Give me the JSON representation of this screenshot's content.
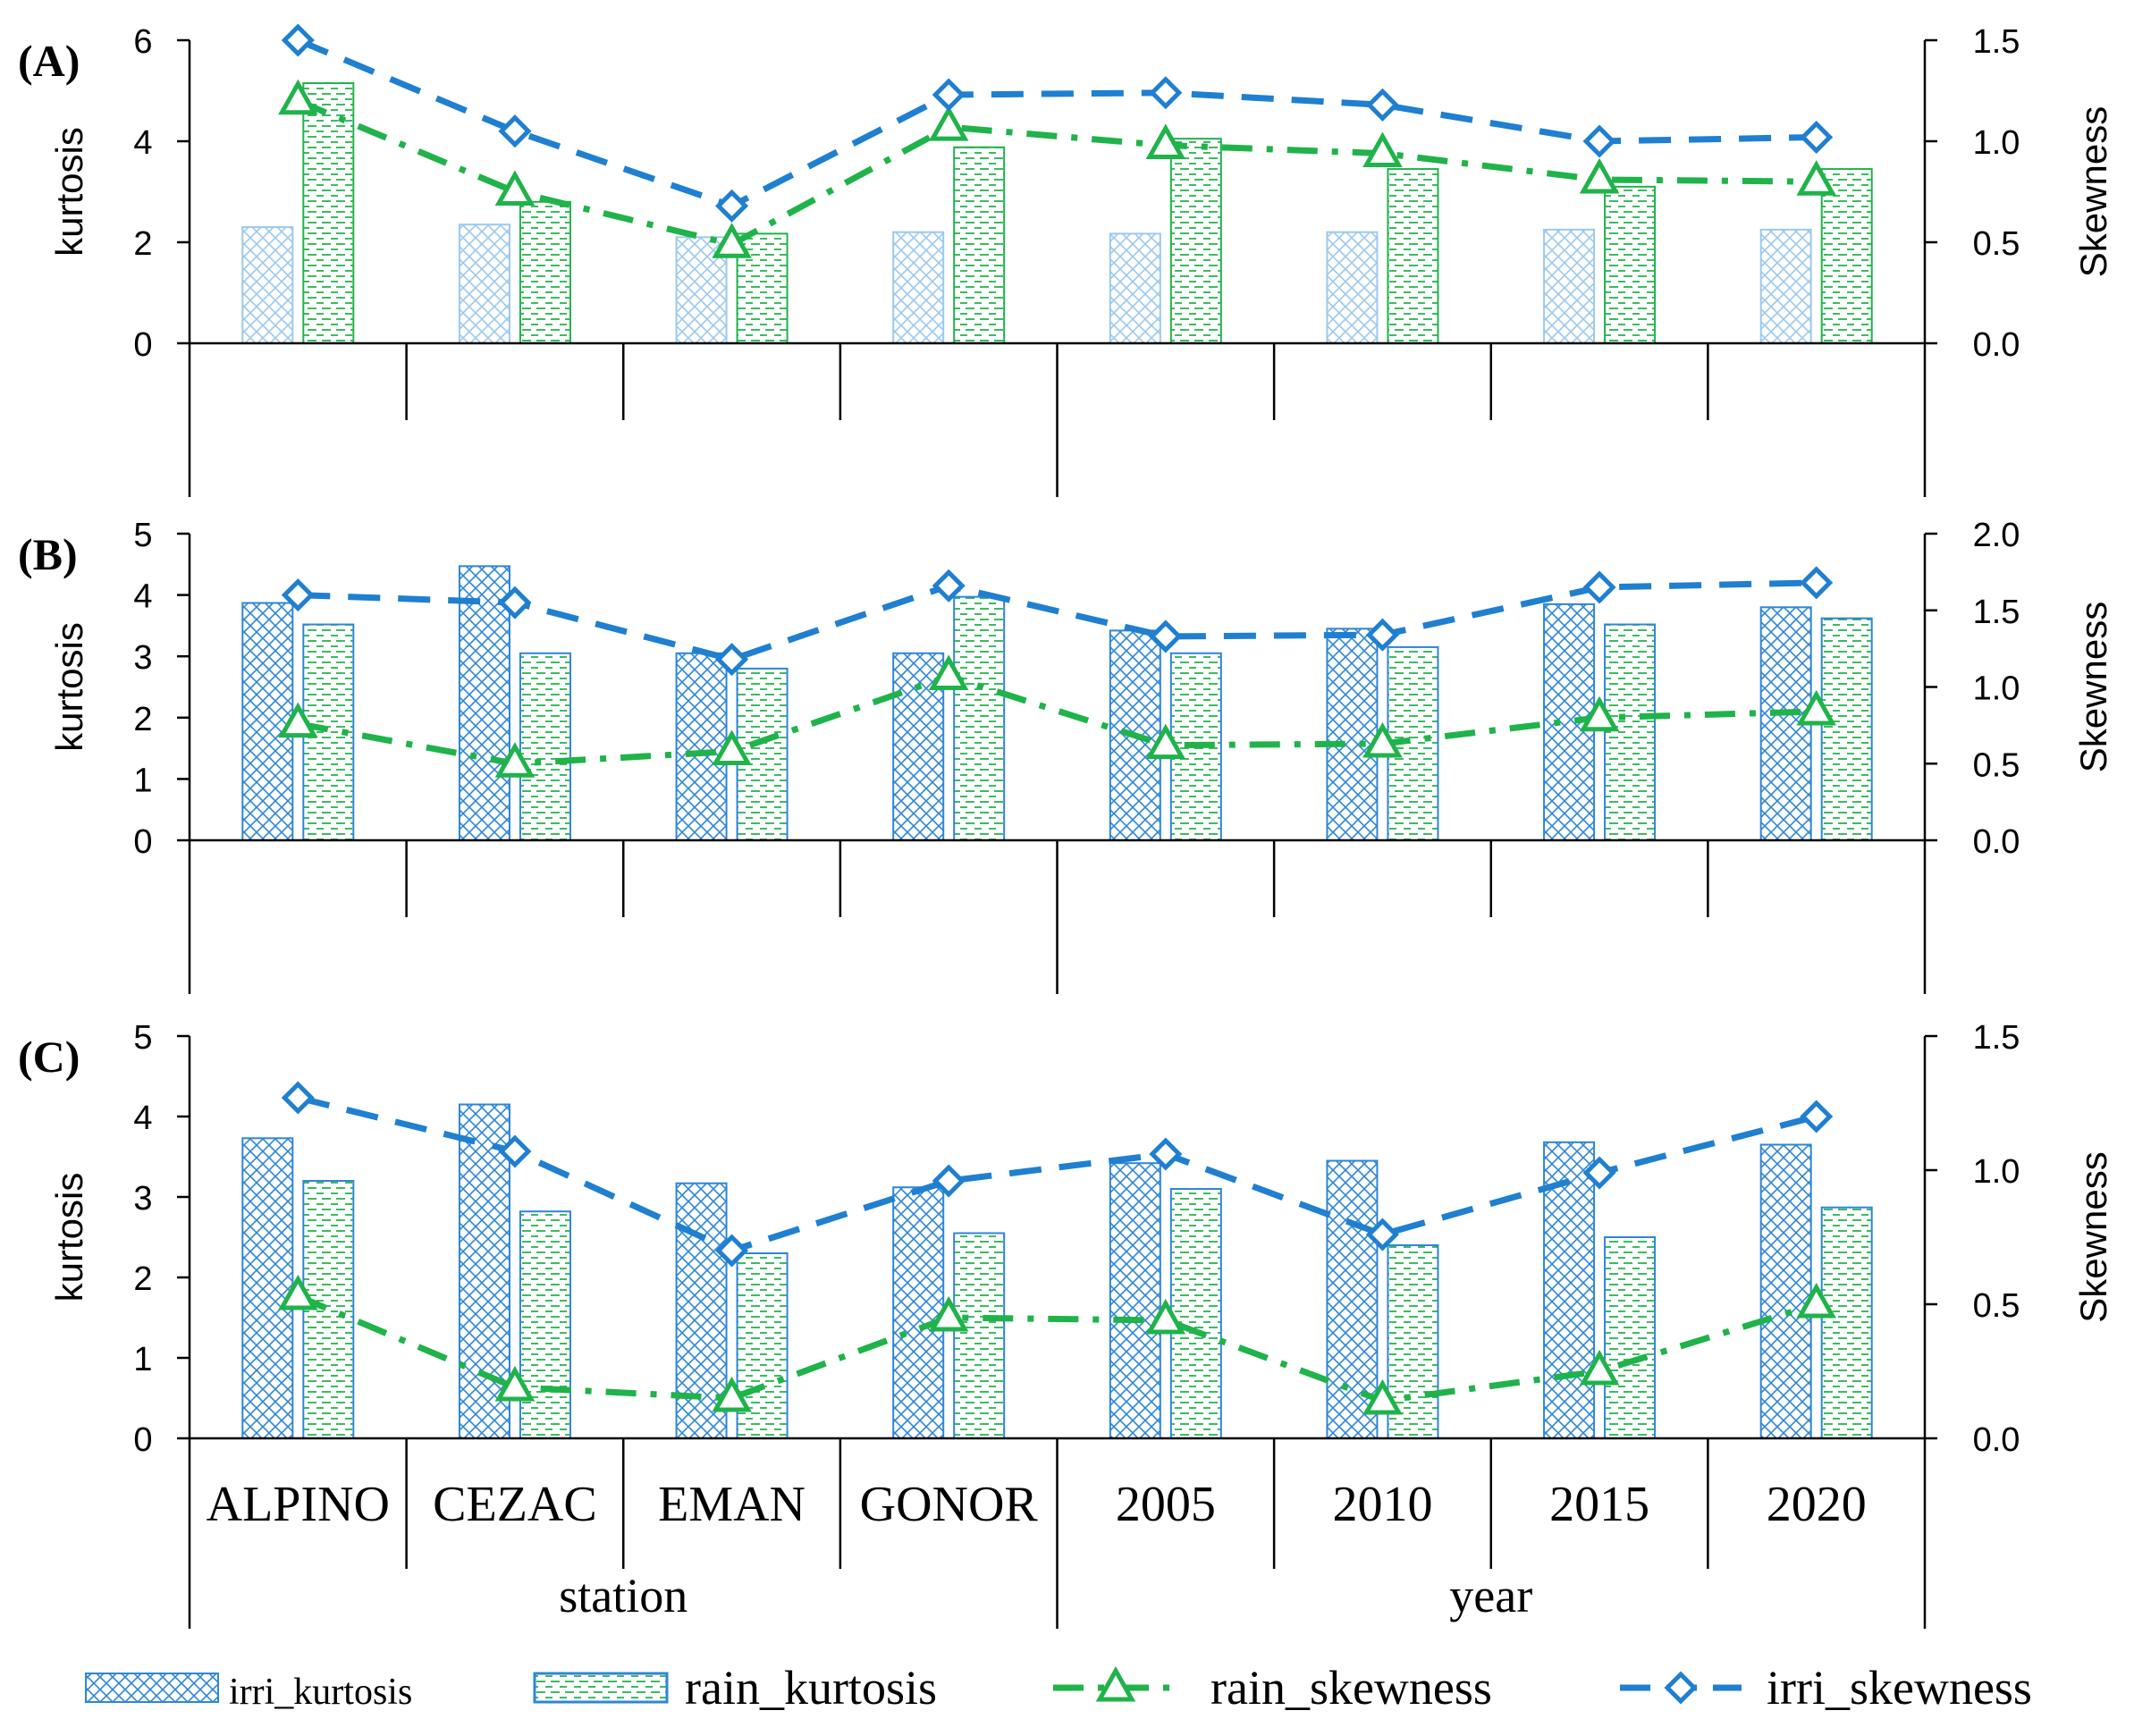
{
  "figure": {
    "categories": [
      "ALPINO",
      "CEZAC",
      "EMAN",
      "GONOR",
      "2005",
      "2010",
      "2015",
      "2020"
    ],
    "groups": [
      {
        "label": "station",
        "span": [
          0,
          3
        ]
      },
      {
        "label": "year",
        "span": [
          4,
          7
        ]
      }
    ],
    "legend": [
      {
        "key": "irri_kurtosis",
        "label": "irri_kurtosis"
      },
      {
        "key": "rain_kurtosis",
        "label": "rain_kurtosis"
      },
      {
        "key": "rain_skewness",
        "label": "rain_skewness"
      },
      {
        "key": "irri_skewness",
        "label": "irri_skewness"
      }
    ],
    "colors": {
      "irri_kurtosis": "#2e86d6",
      "irri_kurtosis_light": "#9cc9ee",
      "rain_kurtosis": "#1fb34a",
      "rain_skewness": "#1fb34a",
      "irri_skewness": "#1f7fd0",
      "axis": "#000000"
    }
  },
  "chart_data": [
    {
      "type": "bar",
      "panel": "(A)",
      "ylabel": "kurtosis",
      "y2label": "Skewness",
      "ylim": [
        0,
        6
      ],
      "yticks": [
        "0",
        "2",
        "4",
        "6"
      ],
      "y2lim": [
        0,
        1.5
      ],
      "y2ticks": [
        "0.0",
        "0.5",
        "1.0",
        "1.5"
      ],
      "light_irri": true,
      "series": [
        {
          "name": "irri_kurtosis",
          "type": "bar",
          "axis": "left",
          "values": [
            2.3,
            2.35,
            2.1,
            2.2,
            2.17,
            2.2,
            2.25,
            2.25
          ]
        },
        {
          "name": "rain_kurtosis",
          "type": "bar",
          "axis": "left",
          "values": [
            5.15,
            2.8,
            2.17,
            3.88,
            4.05,
            3.45,
            3.1,
            3.45
          ]
        },
        {
          "name": "rain_skewness",
          "type": "line",
          "axis": "right",
          "values": [
            1.2,
            0.75,
            0.49,
            1.07,
            0.98,
            0.94,
            0.81,
            0.8
          ]
        },
        {
          "name": "irri_skewness",
          "type": "line",
          "axis": "right",
          "values": [
            1.5,
            1.05,
            0.68,
            1.23,
            1.24,
            1.18,
            1.0,
            1.02
          ]
        }
      ]
    },
    {
      "type": "bar",
      "panel": "(B)",
      "ylabel": "kurtosis",
      "y2label": "Skewness",
      "ylim": [
        0,
        5
      ],
      "yticks": [
        "0",
        "1",
        "2",
        "3",
        "4",
        "5"
      ],
      "y2lim": [
        0,
        2.0
      ],
      "y2ticks": [
        "0.0",
        "0.5",
        "1.0",
        "1.5",
        "2.0"
      ],
      "light_irri": false,
      "series": [
        {
          "name": "irri_kurtosis",
          "type": "bar",
          "axis": "left",
          "values": [
            3.87,
            4.47,
            3.05,
            3.05,
            3.42,
            3.45,
            3.85,
            3.8
          ]
        },
        {
          "name": "rain_kurtosis",
          "type": "bar",
          "axis": "left",
          "values": [
            3.52,
            3.05,
            2.8,
            3.97,
            3.05,
            3.15,
            3.52,
            3.62
          ]
        },
        {
          "name": "rain_skewness",
          "type": "line",
          "axis": "right",
          "values": [
            0.76,
            0.5,
            0.58,
            1.07,
            0.62,
            0.63,
            0.8,
            0.84
          ]
        },
        {
          "name": "irri_skewness",
          "type": "line",
          "axis": "right",
          "values": [
            1.6,
            1.55,
            1.18,
            1.66,
            1.33,
            1.34,
            1.65,
            1.68
          ]
        }
      ]
    },
    {
      "type": "bar",
      "panel": "(C)",
      "ylabel": "kurtosis",
      "y2label": "Skewness",
      "ylim": [
        0,
        5
      ],
      "yticks": [
        "0",
        "1",
        "2",
        "3",
        "4",
        "5"
      ],
      "y2lim": [
        0,
        1.5
      ],
      "y2ticks": [
        "0.0",
        "0.5",
        "1.0",
        "1.5"
      ],
      "light_irri": false,
      "series": [
        {
          "name": "irri_kurtosis",
          "type": "bar",
          "axis": "left",
          "values": [
            3.73,
            4.15,
            3.17,
            3.12,
            3.42,
            3.45,
            3.68,
            3.65
          ]
        },
        {
          "name": "rain_kurtosis",
          "type": "bar",
          "axis": "left",
          "values": [
            3.2,
            2.82,
            2.3,
            2.55,
            3.1,
            2.4,
            2.5,
            2.87
          ]
        },
        {
          "name": "rain_skewness",
          "type": "line",
          "axis": "right",
          "values": [
            0.53,
            0.19,
            0.15,
            0.45,
            0.44,
            0.14,
            0.25,
            0.5
          ]
        },
        {
          "name": "irri_skewness",
          "type": "line",
          "axis": "right",
          "values": [
            1.27,
            1.07,
            0.7,
            0.96,
            1.06,
            0.76,
            0.99,
            1.2
          ]
        }
      ]
    }
  ]
}
